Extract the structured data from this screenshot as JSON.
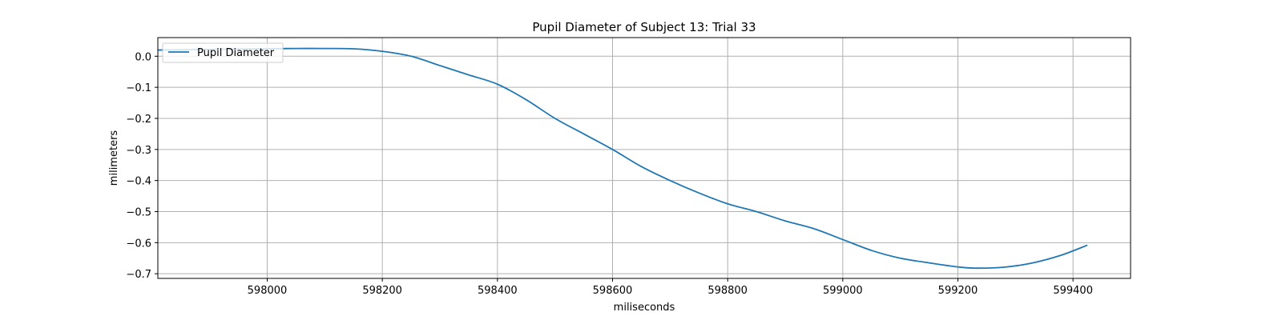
{
  "chart_data": {
    "type": "line",
    "title": "Pupil Diameter of Subject 13: Trial 33",
    "xlabel": "miliseconds",
    "ylabel": "milimeters",
    "xlim": [
      597810,
      599500
    ],
    "ylim": [
      -0.715,
      0.06
    ],
    "grid": true,
    "legend_position": "top-left",
    "x_ticks": [
      598000,
      598200,
      598400,
      598600,
      598800,
      599000,
      599200,
      599400
    ],
    "x_tick_labels": [
      "598000",
      "598200",
      "598400",
      "598600",
      "598800",
      "599000",
      "599200",
      "599400"
    ],
    "y_ticks": [
      0.0,
      -0.1,
      -0.2,
      -0.3,
      -0.4,
      -0.5,
      -0.6,
      -0.7
    ],
    "y_tick_labels": [
      "0.0",
      "−0.1",
      "−0.2",
      "−0.3",
      "−0.4",
      "−0.5",
      "−0.6",
      "−0.7"
    ],
    "series": [
      {
        "name": "Pupil Diameter",
        "color": "#1f77b4",
        "x": [
          597810,
          597900,
          598000,
          598050,
          598100,
          598150,
          598200,
          598250,
          598300,
          598350,
          598400,
          598450,
          598500,
          598550,
          598600,
          598650,
          598700,
          598750,
          598800,
          598850,
          598900,
          598950,
          599000,
          599050,
          599100,
          599150,
          599200,
          599230,
          599280,
          599330,
          599380,
          599425
        ],
        "y": [
          0.02,
          0.022,
          0.024,
          0.025,
          0.025,
          0.024,
          0.016,
          0.0,
          -0.03,
          -0.06,
          -0.09,
          -0.14,
          -0.2,
          -0.25,
          -0.3,
          -0.355,
          -0.4,
          -0.44,
          -0.475,
          -0.5,
          -0.53,
          -0.555,
          -0.59,
          -0.625,
          -0.65,
          -0.665,
          -0.678,
          -0.682,
          -0.679,
          -0.665,
          -0.64,
          -0.608
        ]
      }
    ]
  }
}
